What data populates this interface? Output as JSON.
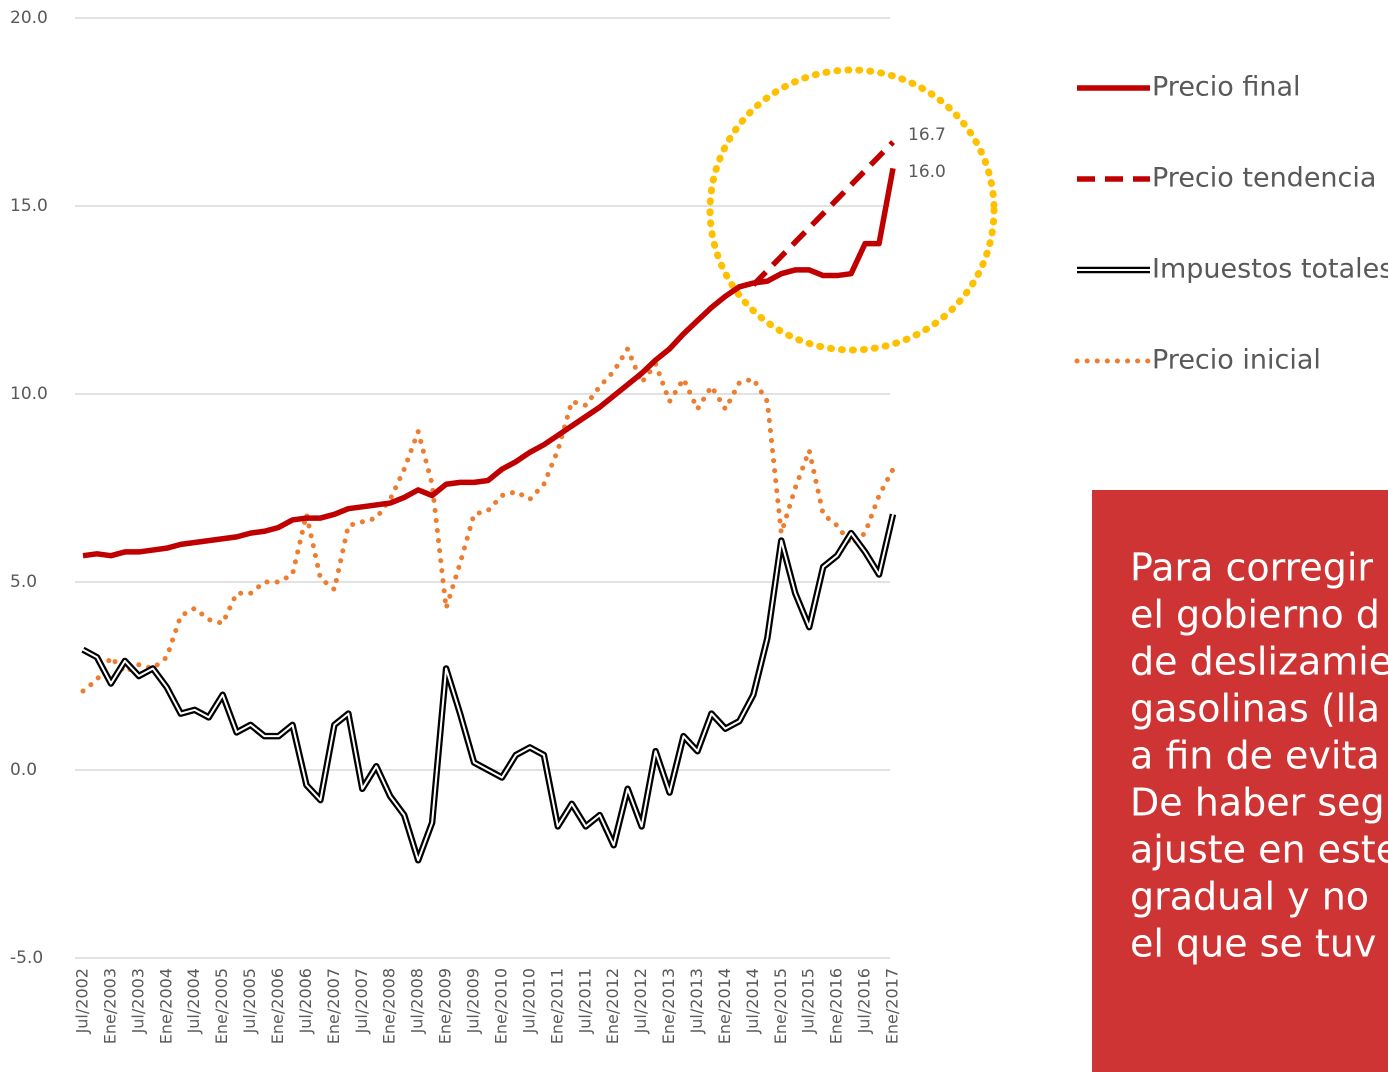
{
  "chart_data": {
    "type": "line",
    "categories": [
      "Jul/2002",
      null,
      "Ene/2003",
      null,
      "Jul/2003",
      null,
      "Ene/2004",
      null,
      "Jul/2004",
      null,
      "Ene/2005",
      null,
      "Jul/2005",
      null,
      "Ene/2006",
      null,
      "Jul/2006",
      null,
      "Ene/2007",
      null,
      "Jul/2007",
      null,
      "Ene/2008",
      null,
      "Jul/2008",
      null,
      "Ene/2009",
      null,
      "Jul/2009",
      null,
      "Ene/2010",
      null,
      "Jul/2010",
      null,
      "Ene/2011",
      null,
      "Jul/2011",
      null,
      "Ene/2012",
      null,
      "Jul/2012",
      null,
      "Ene/2013",
      null,
      "Jul/2013",
      null,
      "Ene/2014",
      null,
      "Jul/2014",
      null,
      "Ene/2015",
      null,
      "Jul/2015",
      null,
      "Ene/2016",
      null,
      "Jul/2016",
      null,
      "Ene/2017"
    ],
    "series": [
      {
        "name": "Precio final",
        "color": "#c00000",
        "style": "solid",
        "values": [
          5.7,
          5.75,
          5.7,
          5.8,
          5.8,
          5.85,
          5.9,
          6.0,
          6.05,
          6.1,
          6.15,
          6.2,
          6.3,
          6.35,
          6.45,
          6.65,
          6.7,
          6.7,
          6.8,
          6.95,
          7.0,
          7.05,
          7.1,
          7.25,
          7.45,
          7.3,
          7.6,
          7.65,
          7.65,
          7.7,
          8.0,
          8.2,
          8.45,
          8.65,
          8.9,
          9.15,
          9.4,
          9.65,
          9.95,
          10.25,
          10.55,
          10.9,
          11.2,
          11.6,
          11.95,
          12.3,
          12.6,
          12.85,
          12.95,
          13.0,
          13.2,
          13.3,
          13.3,
          13.15,
          13.15,
          13.2,
          14.0,
          14.0,
          16.0
        ],
        "value_labels": [
          null,
          null,
          null,
          null,
          null,
          null,
          null,
          null,
          null,
          null,
          null,
          null,
          null,
          null,
          null,
          null,
          null,
          null,
          null,
          null,
          null,
          null,
          null,
          null,
          null,
          null,
          null,
          null,
          null,
          null,
          null,
          null,
          null,
          null,
          null,
          null,
          null,
          null,
          null,
          null,
          null,
          null,
          null,
          null,
          null,
          null,
          null,
          null,
          null,
          null,
          null,
          null,
          null,
          null,
          null,
          null,
          null,
          null,
          "16.0"
        ]
      },
      {
        "name": "Precio tendencia",
        "color": "#c00000",
        "style": "dash",
        "values": [
          null,
          null,
          null,
          null,
          null,
          null,
          null,
          null,
          null,
          null,
          null,
          null,
          null,
          null,
          null,
          null,
          null,
          null,
          null,
          null,
          null,
          null,
          null,
          null,
          null,
          null,
          null,
          null,
          null,
          null,
          null,
          null,
          null,
          null,
          null,
          null,
          null,
          null,
          null,
          null,
          null,
          null,
          null,
          null,
          null,
          null,
          null,
          null,
          12.9,
          13.28,
          13.66,
          14.04,
          14.42,
          14.8,
          15.18,
          15.56,
          15.94,
          16.32,
          16.7
        ],
        "value_labels": [
          null,
          null,
          null,
          null,
          null,
          null,
          null,
          null,
          null,
          null,
          null,
          null,
          null,
          null,
          null,
          null,
          null,
          null,
          null,
          null,
          null,
          null,
          null,
          null,
          null,
          null,
          null,
          null,
          null,
          null,
          null,
          null,
          null,
          null,
          null,
          null,
          null,
          null,
          null,
          null,
          null,
          null,
          null,
          null,
          null,
          null,
          null,
          null,
          null,
          null,
          null,
          null,
          null,
          null,
          null,
          null,
          null,
          null,
          "16.7"
        ]
      },
      {
        "name": "Impuestos totales",
        "color": "#000000",
        "style": "double",
        "values": [
          3.2,
          3.0,
          2.3,
          2.9,
          2.5,
          2.7,
          2.2,
          1.5,
          1.6,
          1.4,
          2.0,
          1.0,
          1.2,
          0.9,
          0.9,
          1.2,
          -0.4,
          -0.8,
          1.2,
          1.5,
          -0.5,
          0.1,
          -0.7,
          -1.2,
          -2.4,
          -1.4,
          2.7,
          1.5,
          0.2,
          0.0,
          -0.2,
          0.4,
          0.6,
          0.4,
          -1.5,
          -0.9,
          -1.5,
          -1.2,
          -2.0,
          -0.5,
          -1.5,
          0.5,
          -0.6,
          0.9,
          0.5,
          1.5,
          1.1,
          1.3,
          2.0,
          3.5,
          6.1,
          4.7,
          3.8,
          5.4,
          5.7,
          6.3,
          5.8,
          5.2,
          6.8
        ]
      },
      {
        "name": "Precio inicial",
        "color": "#ed7d31",
        "style": "dot",
        "values": [
          2.1,
          2.4,
          3.0,
          2.6,
          2.8,
          2.7,
          3.0,
          4.1,
          4.3,
          4.0,
          3.9,
          4.7,
          4.7,
          5.0,
          5.0,
          5.2,
          6.8,
          5.1,
          4.8,
          6.5,
          6.6,
          6.7,
          7.2,
          8.0,
          9.0,
          7.6,
          4.3,
          5.5,
          6.8,
          6.9,
          7.3,
          7.4,
          7.2,
          7.6,
          8.5,
          9.8,
          9.7,
          10.2,
          10.6,
          11.2,
          10.3,
          10.8,
          9.8,
          10.4,
          9.6,
          10.2,
          9.6,
          10.3,
          10.4,
          9.8,
          6.3,
          7.5,
          8.5,
          6.8,
          6.5,
          6.0,
          6.3,
          7.3,
          8.0
        ]
      }
    ],
    "ylim": [
      -5,
      20
    ],
    "yticks": [
      {
        "value": -5,
        "label": "-5.0"
      },
      {
        "value": 0,
        "label": "0.0"
      },
      {
        "value": 5,
        "label": "5.0"
      },
      {
        "value": 10,
        "label": "10.0"
      },
      {
        "value": 15,
        "label": "15.0"
      },
      {
        "value": 20,
        "label": "20.0"
      }
    ],
    "grid": true,
    "legend": "right",
    "note_lines": [
      "Para corregir",
      "el gobierno d",
      "de deslizamie",
      "gasolinas (lla",
      "a fin de evita",
      "De haber seg",
      "ajuste en este",
      "gradual y no",
      "el que se tuv"
    ]
  }
}
